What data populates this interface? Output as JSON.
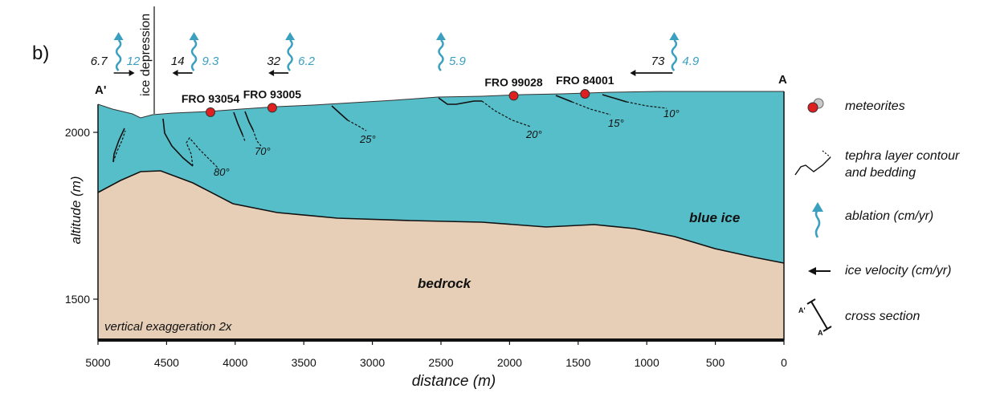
{
  "panel_label": "b)",
  "section_labels": {
    "start": "A'",
    "end": "A"
  },
  "ice_depression_label": "ice depression",
  "region_labels": {
    "ice": "blue ice",
    "rock": "bedrock"
  },
  "exaggeration_note": "vertical exaggeration 2x",
  "axes": {
    "xlabel": "distance (m)",
    "ylabel": "altitude (m)",
    "x_ticks": [
      "5000",
      "4500",
      "4000",
      "3500",
      "3000",
      "2500",
      "2000",
      "1500",
      "1000",
      "500",
      "0"
    ],
    "y_ticks": [
      "2000",
      "1500"
    ]
  },
  "meteorites": [
    {
      "name": "FRO 93054",
      "distance": 4180
    },
    {
      "name": "FRO 93005",
      "distance": 3730
    },
    {
      "name": "FRO 99028",
      "distance": 1970
    },
    {
      "name": "FRO 84001",
      "distance": 1450
    }
  ],
  "stations": [
    {
      "distance": 4850,
      "ablation": "12",
      "velocity": "6.7",
      "direction": "right"
    },
    {
      "distance": 4300,
      "ablation": "9.3",
      "velocity": "14",
      "direction": "left"
    },
    {
      "distance": 3600,
      "ablation": "6.2",
      "velocity": "32",
      "direction": "left"
    },
    {
      "distance": 2500,
      "ablation": "5.9",
      "velocity": "",
      "direction": "none"
    },
    {
      "distance": 800,
      "ablation": "4.9",
      "velocity": "73",
      "direction": "left"
    }
  ],
  "dip_angles": [
    "80°",
    "70°",
    "25°",
    "20°",
    "15°",
    "10°"
  ],
  "legend": {
    "meteorites": "meteorites",
    "tephra_1": "tephra layer contour",
    "tephra_2": "and bedding",
    "ablation": "ablation (cm/yr)",
    "velocity": "ice velocity (cm/yr)",
    "cross_section": "cross section",
    "cs_start": "A'",
    "cs_end": "A"
  },
  "colors": {
    "ice": "#56bec9",
    "bedrock": "#e7cfb7",
    "meteorite": "#e02020",
    "ablation_arrow": "#3b9fc0",
    "ablation_text": "#3b9fc0",
    "line": "#111111"
  }
}
